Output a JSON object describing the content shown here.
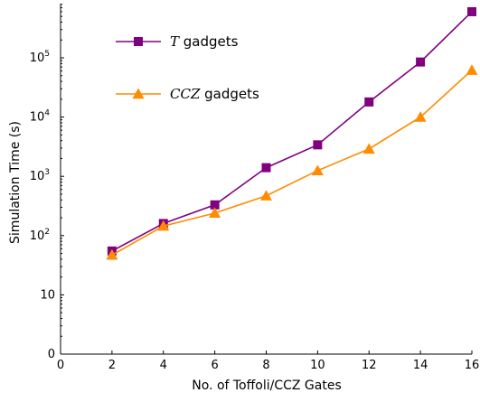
{
  "chart_data": {
    "type": "line",
    "xlabel": "No. of Toffoli/CCZ Gates",
    "ylabel": "Simulation Time (s)",
    "xlim": [
      0,
      16
    ],
    "y_scale": "log",
    "x_ticks": [
      0,
      2,
      4,
      6,
      8,
      10,
      12,
      14,
      16
    ],
    "y_ticks": [
      {
        "value": 1,
        "label": "0"
      },
      {
        "value": 10,
        "label": "10"
      },
      {
        "value": 100,
        "label": "10",
        "exp": "2"
      },
      {
        "value": 1000,
        "label": "10",
        "exp": "3"
      },
      {
        "value": 10000,
        "label": "10",
        "exp": "4"
      },
      {
        "value": 100000,
        "label": "10",
        "exp": "5"
      }
    ],
    "legend_position": "top-left",
    "grid": false,
    "series": [
      {
        "name_math": "T",
        "name_text": " gadgets",
        "color": "#800080",
        "marker": "square",
        "x": [
          2,
          4,
          6,
          8,
          10,
          12,
          14,
          16
        ],
        "y": [
          55,
          160,
          330,
          1400,
          3400,
          18000,
          85000,
          600000
        ]
      },
      {
        "name_math": "CCZ",
        "name_text": " gadgets",
        "color": "#ff8c00",
        "marker": "triangle",
        "x": [
          2,
          4,
          6,
          8,
          10,
          12,
          14,
          16
        ],
        "y": [
          47,
          145,
          240,
          470,
          1250,
          2900,
          10000,
          62000
        ]
      }
    ]
  }
}
